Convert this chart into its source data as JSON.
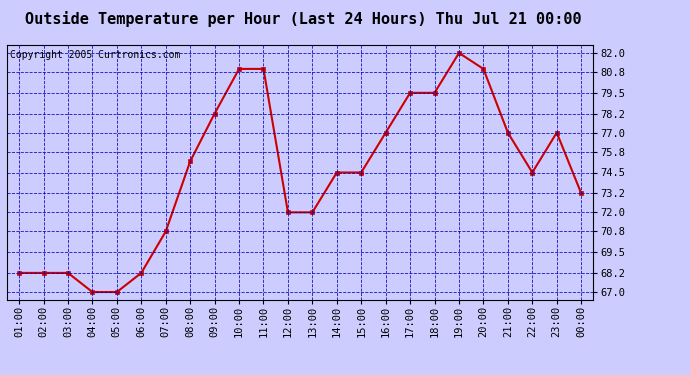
{
  "title": "Outside Temperature per Hour (Last 24 Hours) Thu Jul 21 00:00",
  "copyright": "Copyright 2005 Curtronics.com",
  "x_labels": [
    "01:00",
    "02:00",
    "03:00",
    "04:00",
    "05:00",
    "06:00",
    "07:00",
    "08:00",
    "09:00",
    "10:00",
    "11:00",
    "12:00",
    "13:00",
    "14:00",
    "15:00",
    "16:00",
    "17:00",
    "18:00",
    "19:00",
    "20:00",
    "21:00",
    "22:00",
    "23:00",
    "00:00"
  ],
  "y_values": [
    68.2,
    68.2,
    68.2,
    67.0,
    67.0,
    68.2,
    70.8,
    75.2,
    78.2,
    81.0,
    81.0,
    72.0,
    72.0,
    74.5,
    74.5,
    77.0,
    79.5,
    79.5,
    82.0,
    81.0,
    77.0,
    74.5,
    77.0,
    73.2
  ],
  "y_ticks": [
    67.0,
    68.2,
    69.5,
    70.8,
    72.0,
    73.2,
    74.5,
    75.8,
    77.0,
    78.2,
    79.5,
    80.8,
    82.0
  ],
  "ylim": [
    66.5,
    82.5
  ],
  "line_color": "#cc0000",
  "marker_color": "#cc0000",
  "bg_color": "#ccccff",
  "plot_bg_color": "#ccccff",
  "grid_color": "#0000bb",
  "title_fontsize": 11,
  "copyright_fontsize": 7,
  "tick_fontsize": 7.5
}
